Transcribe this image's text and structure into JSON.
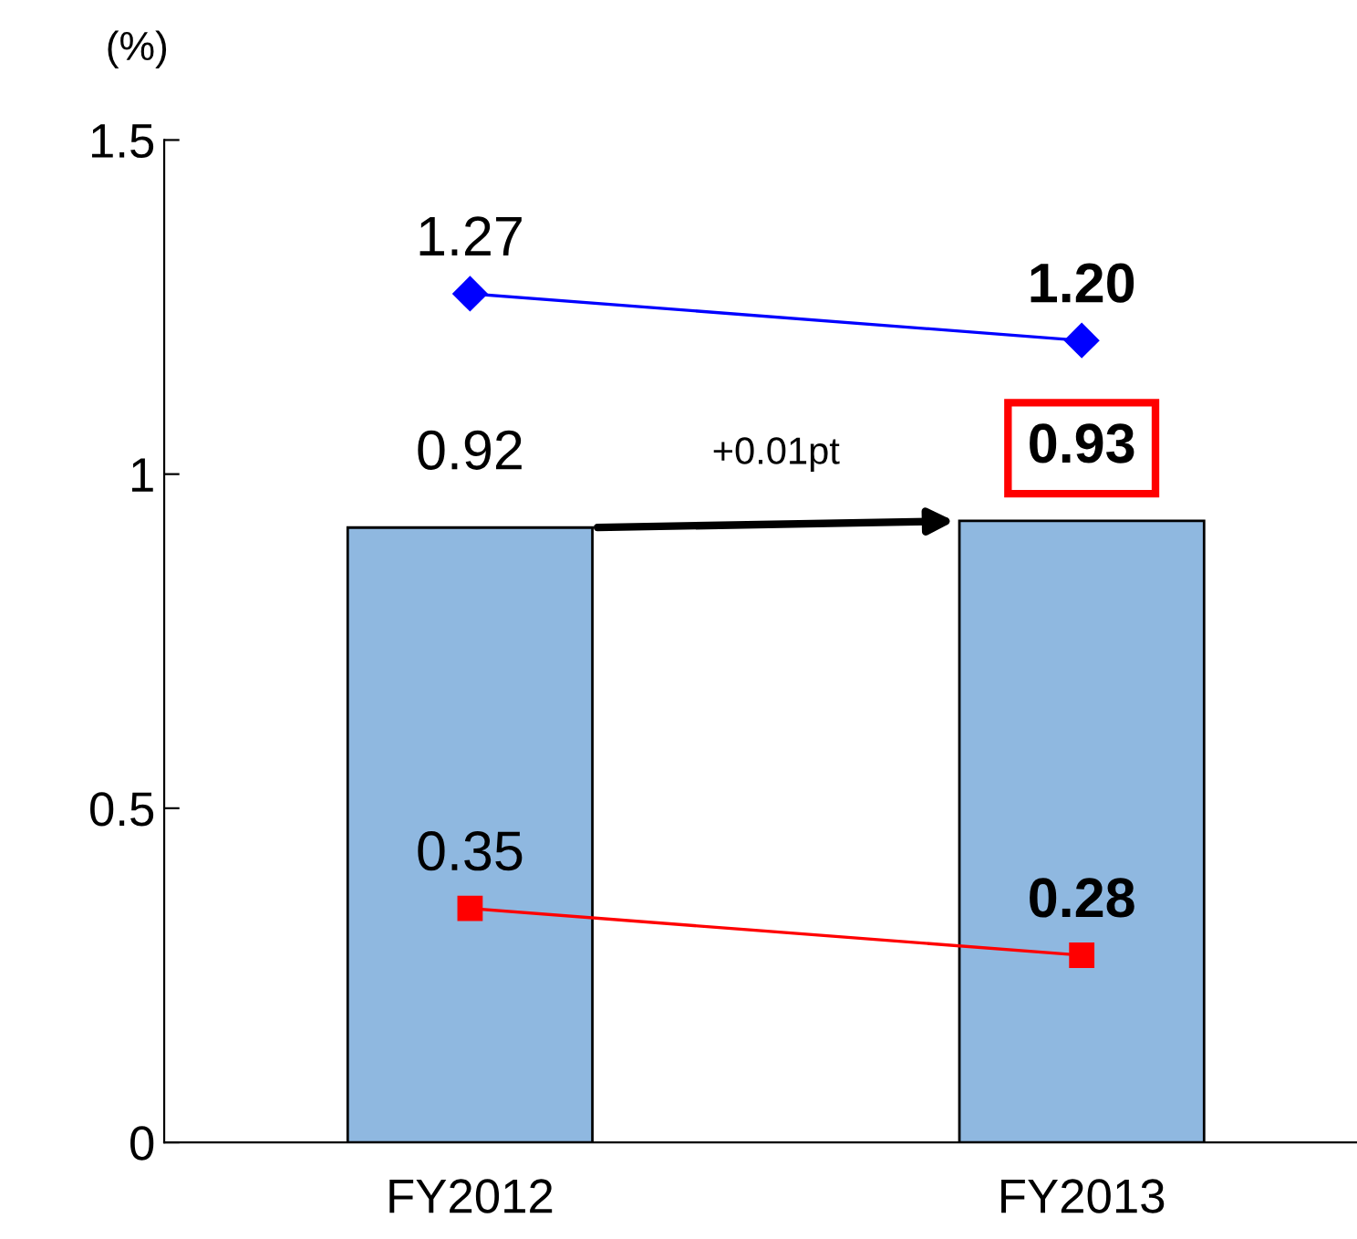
{
  "chart_data": {
    "type": "bar",
    "ylabel": "(%)",
    "categories": [
      "FY2012",
      "FY2013"
    ],
    "series": [
      {
        "color": "#8fb8e0",
        "values": [
          0.92,
          0.93
        ],
        "value_labels": [
          "0.92",
          "0.93"
        ]
      },
      {
        "type": "line",
        "color": "#0000ff",
        "marker": "diamond",
        "values": [
          1.27,
          1.2
        ],
        "value_labels": [
          "1.27",
          "1.20"
        ]
      },
      {
        "type": "line",
        "color": "#ff0000",
        "marker": "square",
        "values": [
          0.35,
          0.28
        ],
        "value_labels": [
          "0.35",
          "0.28"
        ]
      }
    ],
    "ylim": [
      0,
      1.5
    ],
    "yticks": [
      0,
      0.5,
      1,
      1.5
    ],
    "grid": false,
    "legend": false,
    "annotations": [
      "+0.01pt"
    ]
  }
}
